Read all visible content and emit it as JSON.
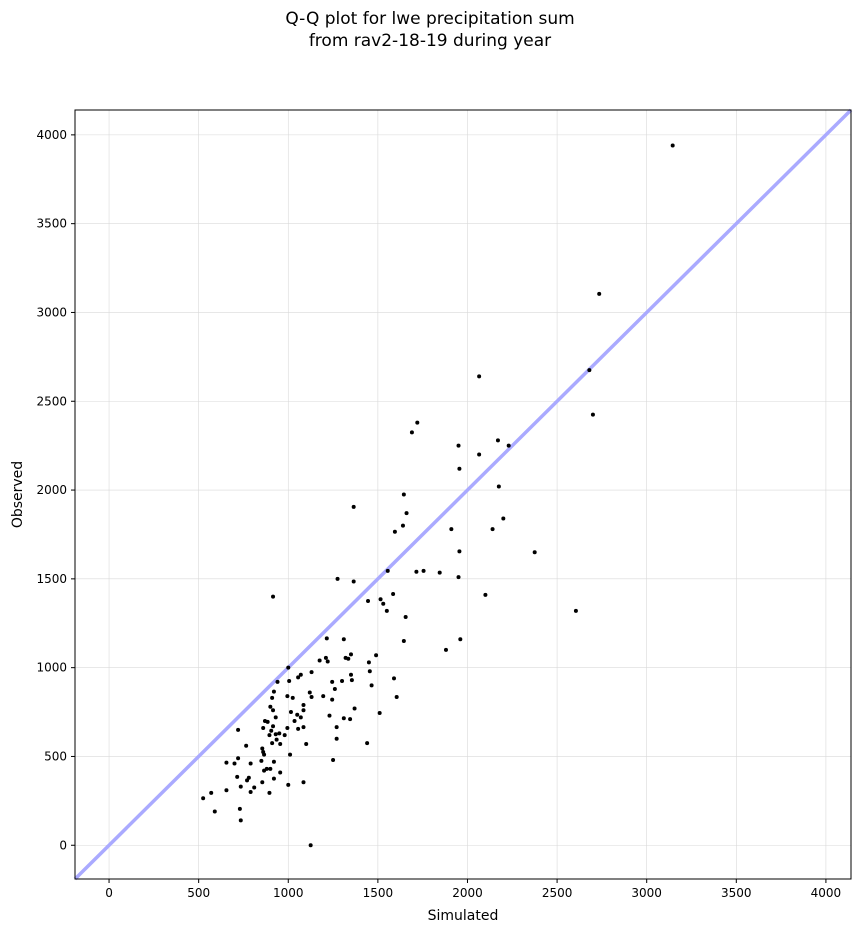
{
  "chart_data": {
    "type": "scatter",
    "title_lines": [
      "Q-Q plot for lwe precipitation sum",
      "from rav2-18-19 during year"
    ],
    "xlabel": "Simulated",
    "ylabel": "Observed",
    "xlim": [
      -190,
      4140
    ],
    "ylim": [
      -190,
      4140
    ],
    "xticks": [
      0,
      500,
      1000,
      1500,
      2000,
      2500,
      3000,
      3500,
      4000
    ],
    "yticks": [
      0,
      500,
      1000,
      1500,
      2000,
      2500,
      3000,
      3500,
      4000
    ],
    "grid": true,
    "reference_line": {
      "from": [
        -190,
        -190
      ],
      "to": [
        4140,
        4140
      ],
      "color": "#aaaaff"
    },
    "point_color": "#000000",
    "points": [
      [
        3145,
        3940
      ],
      [
        2735,
        3105
      ],
      [
        2680,
        2675
      ],
      [
        2700,
        2425
      ],
      [
        2065,
        2640
      ],
      [
        1720,
        2380
      ],
      [
        1690,
        2325
      ],
      [
        1950,
        2250
      ],
      [
        2170,
        2280
      ],
      [
        2230,
        2250
      ],
      [
        2065,
        2200
      ],
      [
        1955,
        2120
      ],
      [
        2175,
        2020
      ],
      [
        1645,
        1975
      ],
      [
        1660,
        1870
      ],
      [
        1365,
        1905
      ],
      [
        2200,
        1840
      ],
      [
        1640,
        1800
      ],
      [
        1595,
        1765
      ],
      [
        1910,
        1780
      ],
      [
        2140,
        1780
      ],
      [
        1955,
        1655
      ],
      [
        2375,
        1650
      ],
      [
        1555,
        1545
      ],
      [
        1715,
        1540
      ],
      [
        1755,
        1545
      ],
      [
        1845,
        1535
      ],
      [
        1950,
        1510
      ],
      [
        1275,
        1500
      ],
      [
        1365,
        1485
      ],
      [
        2100,
        1410
      ],
      [
        1585,
        1415
      ],
      [
        915,
        1400
      ],
      [
        1515,
        1385
      ],
      [
        1445,
        1375
      ],
      [
        1530,
        1360
      ],
      [
        1550,
        1320
      ],
      [
        2605,
        1320
      ],
      [
        1655,
        1285
      ],
      [
        1960,
        1160
      ],
      [
        1645,
        1150
      ],
      [
        1880,
        1100
      ],
      [
        1215,
        1165
      ],
      [
        1310,
        1160
      ],
      [
        1490,
        1070
      ],
      [
        1350,
        1075
      ],
      [
        1210,
        1055
      ],
      [
        1320,
        1055
      ],
      [
        1335,
        1050
      ],
      [
        1220,
        1035
      ],
      [
        1175,
        1040
      ],
      [
        1450,
        1030
      ],
      [
        1000,
        1000
      ],
      [
        1455,
        980
      ],
      [
        1130,
        975
      ],
      [
        1070,
        960
      ],
      [
        1350,
        960
      ],
      [
        1590,
        940
      ],
      [
        1055,
        945
      ],
      [
        1005,
        925
      ],
      [
        1355,
        930
      ],
      [
        1300,
        925
      ],
      [
        940,
        920
      ],
      [
        1245,
        920
      ],
      [
        1260,
        880
      ],
      [
        1465,
        900
      ],
      [
        1120,
        860
      ],
      [
        920,
        865
      ],
      [
        995,
        840
      ],
      [
        1025,
        830
      ],
      [
        1130,
        835
      ],
      [
        1195,
        840
      ],
      [
        1605,
        835
      ],
      [
        910,
        830
      ],
      [
        1245,
        820
      ],
      [
        1085,
        790
      ],
      [
        900,
        780
      ],
      [
        915,
        760
      ],
      [
        1370,
        770
      ],
      [
        1085,
        760
      ],
      [
        1015,
        750
      ],
      [
        1050,
        735
      ],
      [
        1510,
        745
      ],
      [
        1230,
        730
      ],
      [
        1070,
        720
      ],
      [
        930,
        720
      ],
      [
        1310,
        715
      ],
      [
        1035,
        700
      ],
      [
        1345,
        710
      ],
      [
        870,
        700
      ],
      [
        885,
        695
      ],
      [
        915,
        670
      ],
      [
        860,
        660
      ],
      [
        995,
        660
      ],
      [
        1270,
        665
      ],
      [
        1085,
        665
      ],
      [
        1055,
        655
      ],
      [
        720,
        650
      ],
      [
        905,
        645
      ],
      [
        930,
        625
      ],
      [
        950,
        630
      ],
      [
        895,
        620
      ],
      [
        980,
        620
      ],
      [
        1270,
        600
      ],
      [
        935,
        595
      ],
      [
        910,
        575
      ],
      [
        1440,
        575
      ],
      [
        1100,
        570
      ],
      [
        955,
        570
      ],
      [
        765,
        560
      ],
      [
        855,
        545
      ],
      [
        860,
        525
      ],
      [
        865,
        510
      ],
      [
        1010,
        510
      ],
      [
        1250,
        480
      ],
      [
        720,
        490
      ],
      [
        850,
        475
      ],
      [
        920,
        470
      ],
      [
        790,
        460
      ],
      [
        700,
        460
      ],
      [
        655,
        465
      ],
      [
        880,
        430
      ],
      [
        900,
        430
      ],
      [
        955,
        410
      ],
      [
        865,
        420
      ],
      [
        715,
        385
      ],
      [
        780,
        380
      ],
      [
        920,
        375
      ],
      [
        770,
        365
      ],
      [
        855,
        355
      ],
      [
        1085,
        355
      ],
      [
        1000,
        340
      ],
      [
        735,
        330
      ],
      [
        810,
        325
      ],
      [
        790,
        300
      ],
      [
        655,
        310
      ],
      [
        895,
        295
      ],
      [
        570,
        295
      ],
      [
        525,
        265
      ],
      [
        730,
        205
      ],
      [
        590,
        190
      ],
      [
        735,
        140
      ],
      [
        1125,
        0
      ]
    ]
  }
}
